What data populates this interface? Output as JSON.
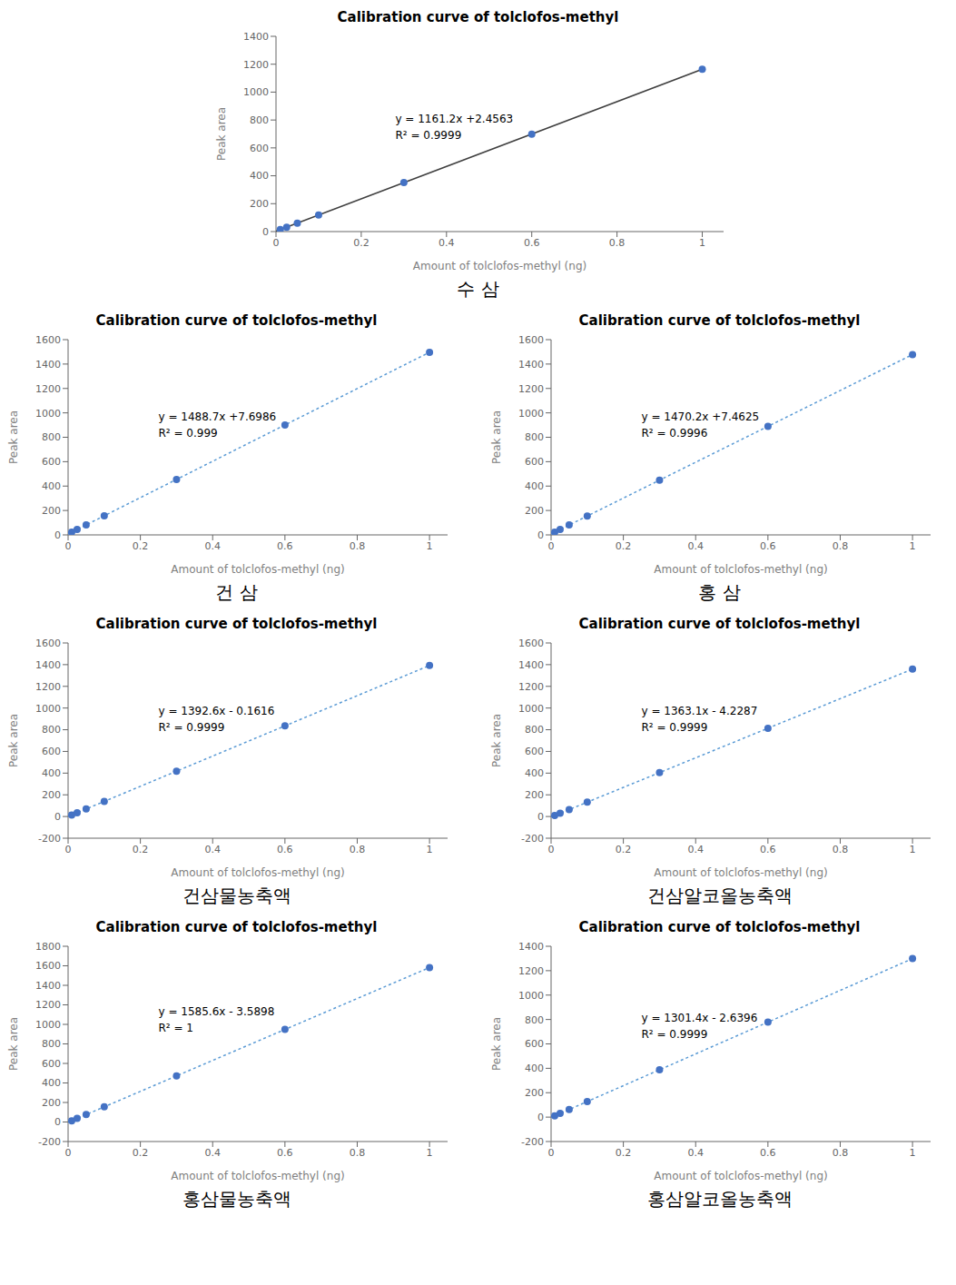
{
  "chart_data": [
    {
      "type": "scatter",
      "title": "Calibration curve of tolclofos-methyl",
      "x_label": "Amount of tolclofos-methyl (ng)",
      "y_label": "Peak area",
      "subtitle": "수  삼",
      "grid": false,
      "xlim": [
        0,
        1.05
      ],
      "xticks": [
        0,
        0.2,
        0.4,
        0.6,
        0.8,
        1
      ],
      "ylim": [
        0,
        1400
      ],
      "yticks": [
        0,
        200,
        400,
        600,
        800,
        1000,
        1200,
        1400
      ],
      "series": [
        {
          "type": "line",
          "color": "#404040",
          "line_style": "solid",
          "x": [
            0,
            1
          ],
          "values": [
            2.4563,
            1163.6563
          ]
        },
        {
          "type": "scatter",
          "color": "#4472C4",
          "marker": "circle",
          "x": [
            0.01,
            0.025,
            0.05,
            0.1,
            0.3,
            0.6,
            1.0
          ],
          "values": [
            14.0683,
            31.4863,
            60.5163,
            118.5763,
            350.8163,
            699.1763,
            1163.6563
          ]
        }
      ],
      "annotations": [
        {
          "text": [
            "y = 1161.2x +2.4563",
            "R² = 0.9999"
          ],
          "x": 0.28,
          "y": 750
        }
      ]
    },
    {
      "type": "scatter",
      "title": "Calibration curve of tolclofos-methyl",
      "x_label": "Amount of tolclofos-methyl (ng)",
      "y_label": "Peak area",
      "subtitle": "건  삼",
      "grid": false,
      "xlim": [
        0,
        1.05
      ],
      "xticks": [
        0,
        0.2,
        0.4,
        0.6,
        0.8,
        1
      ],
      "ylim": [
        0,
        1600
      ],
      "yticks": [
        0,
        200,
        400,
        600,
        800,
        1000,
        1200,
        1400,
        1600
      ],
      "series": [
        {
          "type": "line",
          "color": "#5B9BD5",
          "line_style": "dotted",
          "x": [
            0,
            1
          ],
          "values": [
            7.6986,
            1496.3986
          ]
        },
        {
          "type": "scatter",
          "color": "#4472C4",
          "marker": "circle",
          "x": [
            0.01,
            0.025,
            0.05,
            0.1,
            0.3,
            0.6,
            1.0
          ],
          "values": [
            22.5856,
            44.9161,
            82.1336,
            156.5686,
            454.3086,
            900.9186,
            1496.3986
          ]
        }
      ],
      "annotations": [
        {
          "text": [
            "y = 1488.7x +7.6986",
            "R² = 0.999"
          ],
          "x": 0.25,
          "y": 900
        }
      ]
    },
    {
      "type": "scatter",
      "title": "Calibration curve of tolclofos-methyl",
      "x_label": "Amount of tolclofos-methyl (ng)",
      "y_label": "Peak area",
      "subtitle": "홍  삼",
      "grid": false,
      "xlim": [
        0,
        1.05
      ],
      "xticks": [
        0,
        0.2,
        0.4,
        0.6,
        0.8,
        1
      ],
      "ylim": [
        0,
        1600
      ],
      "yticks": [
        0,
        200,
        400,
        600,
        800,
        1000,
        1200,
        1400,
        1600
      ],
      "series": [
        {
          "type": "line",
          "color": "#5B9BD5",
          "line_style": "dotted",
          "x": [
            0,
            1
          ],
          "values": [
            7.4625,
            1477.6625
          ]
        },
        {
          "type": "scatter",
          "color": "#4472C4",
          "marker": "circle",
          "x": [
            0.01,
            0.025,
            0.05,
            0.1,
            0.3,
            0.6,
            1.0
          ],
          "values": [
            22.1645,
            44.2175,
            80.9725,
            154.4825,
            448.5225,
            889.5825,
            1477.6625
          ]
        }
      ],
      "annotations": [
        {
          "text": [
            "y = 1470.2x +7.4625",
            "R² = 0.9996"
          ],
          "x": 0.25,
          "y": 900
        }
      ]
    },
    {
      "type": "scatter",
      "title": "Calibration curve of tolclofos-methyl",
      "x_label": "Amount of tolclofos-methyl (ng)",
      "y_label": "Peak area",
      "subtitle": "건삼물농축액",
      "grid": false,
      "xlim": [
        0,
        1.05
      ],
      "xticks": [
        0,
        0.2,
        0.4,
        0.6,
        0.8,
        1
      ],
      "ylim": [
        -200,
        1600
      ],
      "yticks": [
        -200,
        0,
        200,
        400,
        600,
        800,
        1000,
        1200,
        1400,
        1600
      ],
      "series": [
        {
          "type": "line",
          "color": "#5B9BD5",
          "line_style": "dotted",
          "x": [
            0,
            1
          ],
          "values": [
            -0.1616,
            1392.4384
          ]
        },
        {
          "type": "scatter",
          "color": "#4472C4",
          "marker": "circle",
          "x": [
            0.01,
            0.025,
            0.05,
            0.1,
            0.3,
            0.6,
            1.0
          ],
          "values": [
            13.7644,
            34.6534,
            69.4684,
            139.0984,
            417.6184,
            835.3984,
            1392.4384
          ]
        }
      ],
      "annotations": [
        {
          "text": [
            "y = 1392.6x - 0.1616",
            "R² = 0.9999"
          ],
          "x": 0.25,
          "y": 900
        }
      ]
    },
    {
      "type": "scatter",
      "title": "Calibration curve of tolclofos-methyl",
      "x_label": "Amount of tolclofos-methyl (ng)",
      "y_label": "Peak area",
      "subtitle": "건삼알코올농축액",
      "grid": false,
      "xlim": [
        0,
        1.05
      ],
      "xticks": [
        0,
        0.2,
        0.4,
        0.6,
        0.8,
        1
      ],
      "ylim": [
        -200,
        1600
      ],
      "yticks": [
        -200,
        0,
        200,
        400,
        600,
        800,
        1000,
        1200,
        1400,
        1600
      ],
      "series": [
        {
          "type": "line",
          "color": "#5B9BD5",
          "line_style": "dotted",
          "x": [
            0,
            1
          ],
          "values": [
            -4.2287,
            1358.8713
          ]
        },
        {
          "type": "scatter",
          "color": "#4472C4",
          "marker": "circle",
          "x": [
            0.01,
            0.025,
            0.05,
            0.1,
            0.3,
            0.6,
            1.0
          ],
          "values": [
            9.4023,
            29.8488,
            63.9263,
            132.0813,
            404.7013,
            813.6313,
            1358.8713
          ]
        }
      ],
      "annotations": [
        {
          "text": [
            "y = 1363.1x - 4.2287",
            "R² = 0.9999"
          ],
          "x": 0.25,
          "y": 900
        }
      ]
    },
    {
      "type": "scatter",
      "title": "Calibration curve of tolclofos-methyl",
      "x_label": "Amount of tolclofos-methyl (ng)",
      "y_label": "Peak area",
      "subtitle": "홍삼물농축액",
      "grid": false,
      "xlim": [
        0,
        1.05
      ],
      "xticks": [
        0,
        0.2,
        0.4,
        0.6,
        0.8,
        1
      ],
      "ylim": [
        -200,
        1800
      ],
      "yticks": [
        -200,
        0,
        200,
        400,
        600,
        800,
        1000,
        1200,
        1400,
        1600,
        1800
      ],
      "series": [
        {
          "type": "line",
          "color": "#5B9BD5",
          "line_style": "dotted",
          "x": [
            0,
            1
          ],
          "values": [
            -3.5898,
            1582.0102
          ]
        },
        {
          "type": "scatter",
          "color": "#4472C4",
          "marker": "circle",
          "x": [
            0.01,
            0.025,
            0.05,
            0.1,
            0.3,
            0.6,
            1.0
          ],
          "values": [
            12.2662,
            36.0502,
            75.6902,
            154.9702,
            472.0902,
            947.7702,
            1582.0102
          ]
        }
      ],
      "annotations": [
        {
          "text": [
            "y = 1585.6x - 3.5898",
            "R² = 1"
          ],
          "x": 0.25,
          "y": 1050
        }
      ]
    },
    {
      "type": "scatter",
      "title": "Calibration curve of tolclofos-methyl",
      "x_label": "Amount of tolclofos-methyl (ng)",
      "y_label": "Peak area",
      "subtitle": "홍삼알코올농축액",
      "grid": false,
      "xlim": [
        0,
        1.05
      ],
      "xticks": [
        0,
        0.2,
        0.4,
        0.6,
        0.8,
        1
      ],
      "ylim": [
        -200,
        1400
      ],
      "yticks": [
        -200,
        0,
        200,
        400,
        600,
        800,
        1000,
        1200,
        1400
      ],
      "series": [
        {
          "type": "line",
          "color": "#5B9BD5",
          "line_style": "dotted",
          "x": [
            0,
            1
          ],
          "values": [
            -2.6396,
            1298.7604
          ]
        },
        {
          "type": "scatter",
          "color": "#4472C4",
          "marker": "circle",
          "x": [
            0.01,
            0.025,
            0.05,
            0.1,
            0.3,
            0.6,
            1.0
          ],
          "values": [
            10.3744,
            29.8954,
            62.4304,
            127.5004,
            387.7804,
            778.2004,
            1298.7604
          ]
        }
      ],
      "annotations": [
        {
          "text": [
            "y = 1301.4x - 2.6396",
            "R² = 0.9999"
          ],
          "x": 0.25,
          "y": 750
        }
      ]
    }
  ]
}
